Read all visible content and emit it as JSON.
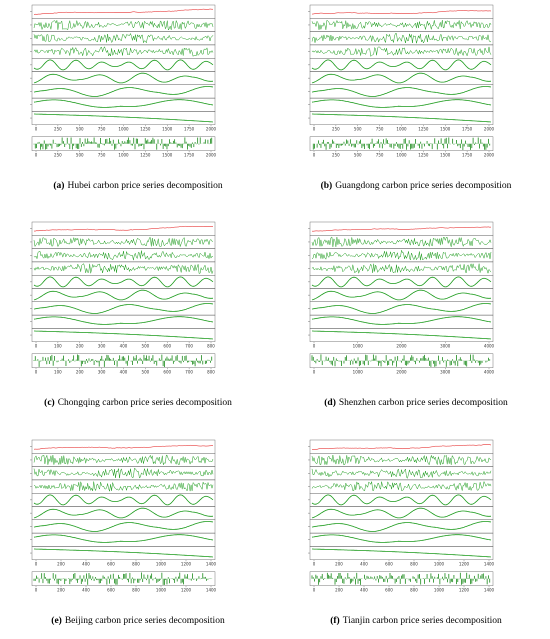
{
  "panels": [
    {
      "label": "(a)",
      "caption": "Hubei carbon price series decomposition",
      "xticks": [
        0,
        250,
        500,
        750,
        1000,
        1250,
        1500,
        1750,
        2000
      ]
    },
    {
      "label": "(b)",
      "caption": "Guangdong carbon price series decomposition",
      "xticks": [
        0,
        250,
        500,
        750,
        1000,
        1250,
        1500,
        1750,
        2000
      ]
    },
    {
      "label": "(c)",
      "caption": "Chongqing carbon price series decomposition",
      "xticks": [
        0,
        100,
        200,
        300,
        400,
        500,
        600,
        700,
        800
      ]
    },
    {
      "label": "(d)",
      "caption": "Shenzhen carbon price series decomposition",
      "xticks": [
        0,
        1000,
        2000,
        3000,
        4000
      ]
    },
    {
      "label": "(e)",
      "caption": "Beijing carbon price series decomposition",
      "xticks": [
        0,
        200,
        400,
        600,
        800,
        1000,
        1200,
        1400
      ]
    },
    {
      "label": "(f)",
      "caption": "Tianjin carbon price series decomposition",
      "xticks": [
        0,
        200,
        400,
        600,
        800,
        1000,
        1200,
        1400
      ]
    }
  ]
}
